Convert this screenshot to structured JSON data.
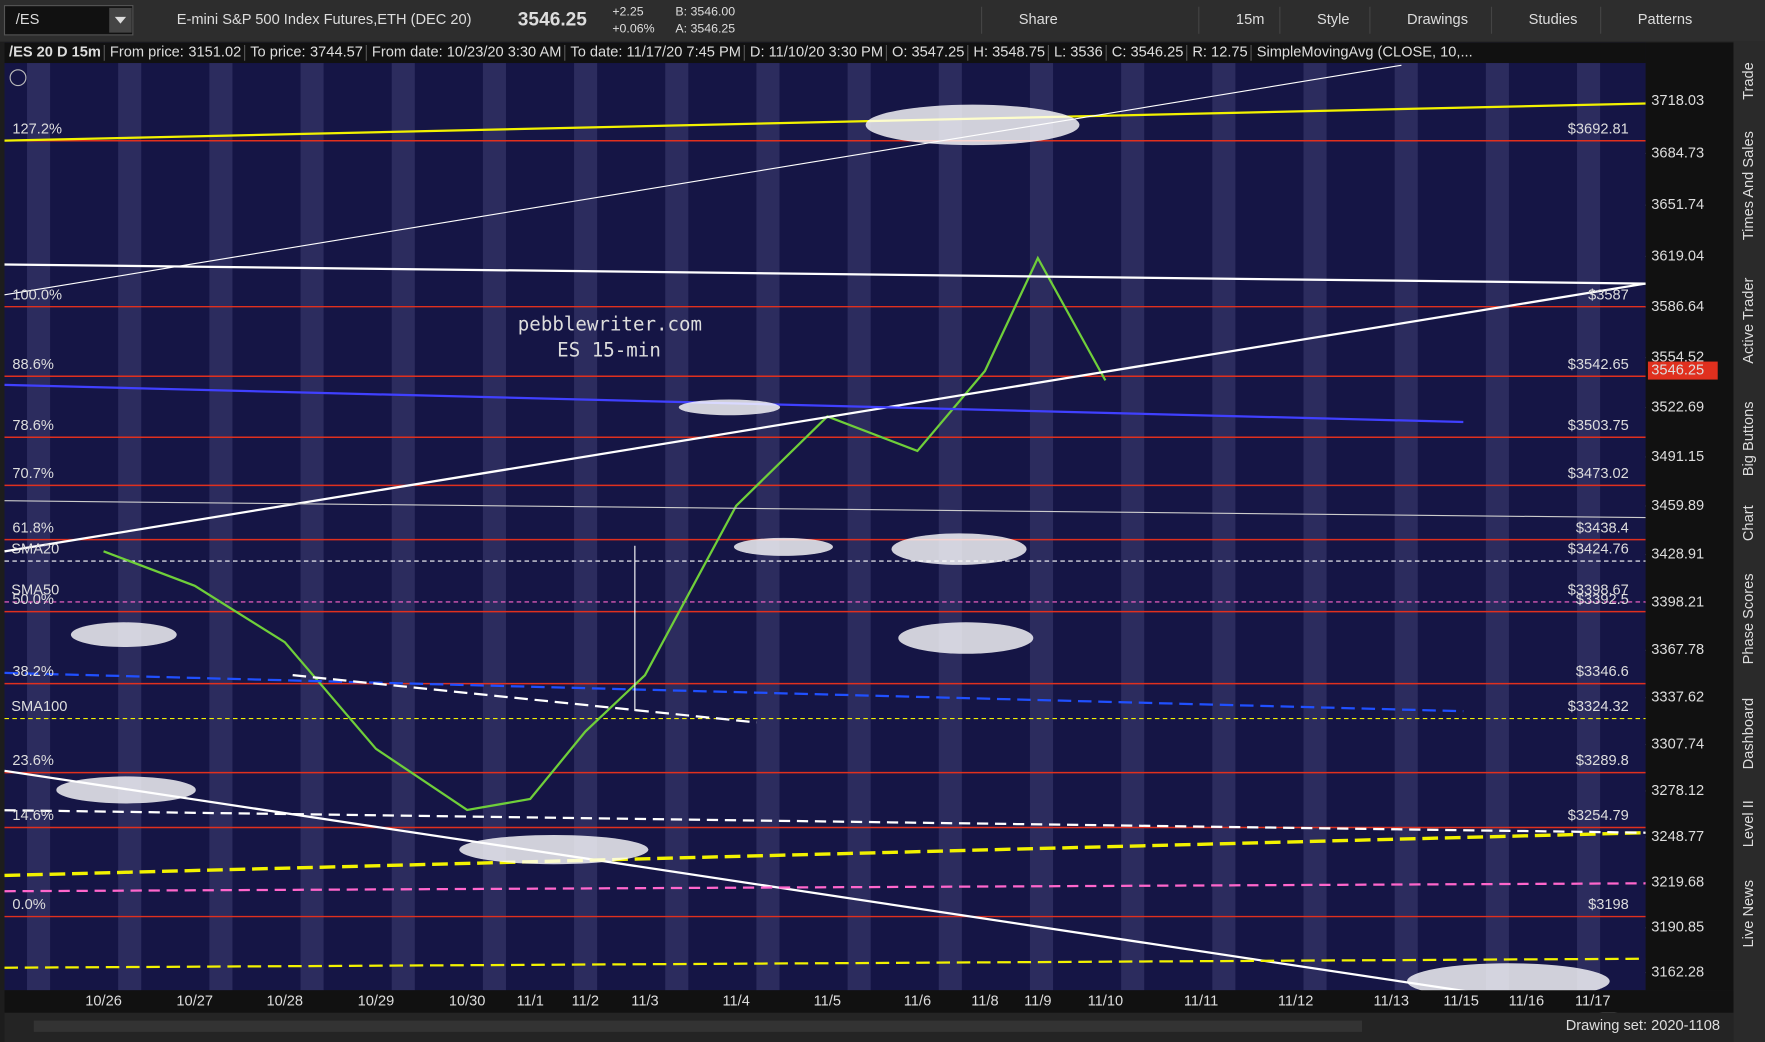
{
  "toolbar": {
    "symbol": "/ES",
    "description": "E-mini S&P 500 Index Futures,ETH (DEC 20)",
    "last": 3546.25,
    "change": "+2.25",
    "change_pct": "+0.06%",
    "bid": "B: 3546.00",
    "ask": "A: 3546.25",
    "buttons": [
      "Share",
      "15m",
      "Style",
      "Drawings",
      "Studies",
      "Patterns"
    ]
  },
  "info_bar": {
    "chart_id": "/ES 20 D 15m",
    "from_price_label": "From price:",
    "from_price": 3151.02,
    "to_price_label": "To price:",
    "to_price": 3744.57,
    "from_date": "From date: 10/23/20 3:30 AM",
    "to_date": "To date: 11/17/20 7:45 PM",
    "date": "D: 11/10/20 3:30 PM",
    "open": "O: 3547.25",
    "high": "H: 3548.75",
    "low": "L: 3536",
    "close": "C: 3546.25",
    "range": "R: 12.75",
    "study": "SimpleMovingAvg (CLOSE, 10,..."
  },
  "chart": {
    "watermark": [
      "pebblewriter.com",
      "ES 15-min"
    ],
    "price_ticks": [
      3718.03,
      3684.73,
      3651.74,
      3619.04,
      3586.64,
      3554.52,
      3522.69,
      3491.15,
      3459.89,
      3428.91,
      3398.21,
      3367.78,
      3337.62,
      3307.74,
      3278.12,
      3248.77,
      3219.68,
      3190.85,
      3162.28
    ],
    "dates": [
      "10/26",
      "10/27",
      "10/28",
      "10/29",
      "10/30",
      "11/1",
      "11/2",
      "11/3",
      "11/4",
      "11/5",
      "11/6",
      "11/8",
      "11/9",
      "11/10",
      "11/11",
      "11/12",
      "11/13",
      "11/15",
      "11/16",
      "11/17"
    ],
    "closes": [
      3431,
      3409,
      3373,
      3305,
      3266,
      3273,
      3316,
      3352,
      3460,
      3517,
      3495,
      3546,
      3618,
      3540,
      null,
      null,
      null,
      null,
      null,
      null
    ],
    "fib_levels": [
      {
        "pct": "127.2%",
        "value": 3692.81,
        "label": "$3692.81"
      },
      {
        "pct": "100.0%",
        "value": 3587,
        "label": "$3587"
      },
      {
        "pct": "88.6%",
        "value": 3542.65,
        "label": "$3542.65"
      },
      {
        "pct": "78.6%",
        "value": 3503.75,
        "label": "$3503.75"
      },
      {
        "pct": "70.7%",
        "value": 3473.02,
        "label": "$3473.02"
      },
      {
        "pct": "61.8%",
        "value": 3438.4,
        "label": "$3438.4"
      },
      {
        "pct": "50.0%",
        "value": 3392.5,
        "label": "$3392.5"
      },
      {
        "pct": "38.2%",
        "value": 3346.6,
        "label": "$3346.6"
      },
      {
        "pct": "23.6%",
        "value": 3289.8,
        "label": "$3289.8"
      },
      {
        "pct": "14.6%",
        "value": 3254.79,
        "label": "$3254.79"
      },
      {
        "pct": "0.0%",
        "value": 3198,
        "label": "$3198"
      }
    ],
    "sma": [
      {
        "name": "SMA20",
        "value": 3424.76,
        "label": "$3424.76",
        "color": "#ffffff"
      },
      {
        "name": "SMA50",
        "value": 3398.67,
        "label": "$3398.67",
        "color": "#ff66cc"
      },
      {
        "name": "SMA100",
        "value": 3324.32,
        "label": "$3324.32",
        "color": "#f2f200"
      }
    ]
  },
  "sidebar": [
    "Trade",
    "Times And Sales",
    "Active Trader",
    "Big Buttons",
    "Chart",
    "Phase Scores",
    "Dashboard",
    "Level II",
    "Live News"
  ],
  "footer": {
    "drawing_set": "Drawing set: 2020-1108"
  }
}
